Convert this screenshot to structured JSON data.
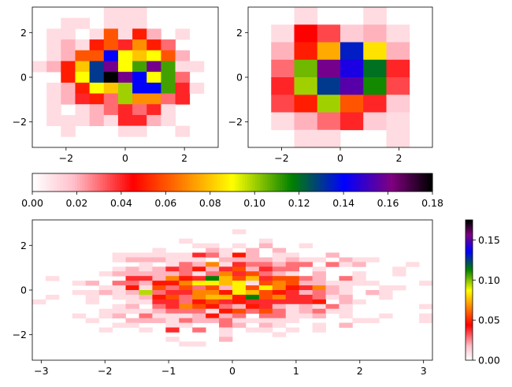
{
  "chart_data": [
    {
      "type": "heatmap",
      "panel": "top-left",
      "xlim": [
        -3.14,
        3.14
      ],
      "ylim": [
        -3.14,
        3.14
      ],
      "xticks": [
        -2,
        0,
        2
      ],
      "yticks": [
        -2,
        0,
        2
      ],
      "xtick_labels": [
        "−2",
        "0",
        "2"
      ],
      "ytick_labels": [
        "−2",
        "0",
        "2"
      ],
      "bins": 13,
      "values_rows_top_to_bottom": [
        [
          0,
          0,
          0,
          0,
          0,
          0.01,
          0.01,
          0.01,
          0,
          0,
          0,
          0,
          0
        ],
        [
          0,
          0,
          0.01,
          0.01,
          0,
          0.01,
          0.01,
          0.01,
          0,
          0,
          0,
          0,
          0
        ],
        [
          0,
          0.01,
          0.01,
          0,
          0.01,
          0.06,
          0.01,
          0.05,
          0.02,
          0,
          0.01,
          0,
          0
        ],
        [
          0,
          0.01,
          0.02,
          0.01,
          0.05,
          0.06,
          0.04,
          0.07,
          0.05,
          0.03,
          0,
          0,
          0
        ],
        [
          0,
          0.01,
          0.02,
          0.06,
          0.06,
          0.14,
          0.09,
          0.08,
          0.09,
          0.06,
          0.02,
          0,
          0
        ],
        [
          0.01,
          0.02,
          0.05,
          0.08,
          0.13,
          0.16,
          0.09,
          0.11,
          0.16,
          0.11,
          0.01,
          0.01,
          0
        ],
        [
          0,
          0,
          0.05,
          0.09,
          0.13,
          0.18,
          0.16,
          0.14,
          0.09,
          0.11,
          0.03,
          0,
          0
        ],
        [
          0,
          0.01,
          0.02,
          0.05,
          0.09,
          0.08,
          0.1,
          0.14,
          0.14,
          0.11,
          0.04,
          0.01,
          0
        ],
        [
          0,
          0.01,
          0.02,
          0.04,
          0.05,
          0.03,
          0.1,
          0.07,
          0.07,
          0.03,
          0.04,
          0,
          0
        ],
        [
          0,
          0.01,
          0,
          0.01,
          0.02,
          0.03,
          0.04,
          0.03,
          0.04,
          0.01,
          0,
          0,
          0
        ],
        [
          0,
          0.01,
          0.01,
          0.01,
          0.02,
          0.01,
          0.04,
          0.04,
          0.02,
          0.01,
          0,
          0,
          0
        ],
        [
          0,
          0,
          0.01,
          0,
          0,
          0,
          0.01,
          0.01,
          0,
          0,
          0.01,
          0,
          0
        ],
        [
          0,
          0,
          0,
          0,
          0,
          0,
          0,
          0,
          0,
          0,
          0,
          0,
          0
        ]
      ]
    },
    {
      "type": "heatmap",
      "panel": "top-right",
      "xlim": [
        -3.14,
        3.14
      ],
      "ylim": [
        -3.14,
        3.14
      ],
      "xticks": [
        -2,
        0,
        2
      ],
      "yticks": [
        -2,
        0,
        2
      ],
      "xtick_labels": [
        "−2",
        "0",
        "2"
      ],
      "ytick_labels": [
        "−2",
        "0",
        "2"
      ],
      "bins": 8,
      "values_rows_top_to_bottom": [
        [
          0,
          0,
          0.01,
          0,
          0,
          0.01,
          0,
          0
        ],
        [
          0,
          0.01,
          0.045,
          0.035,
          0.015,
          0.02,
          0.01,
          0
        ],
        [
          0,
          0.02,
          0.05,
          0.075,
          0.135,
          0.085,
          0.02,
          0
        ],
        [
          0,
          0.03,
          0.105,
          0.16,
          0.145,
          0.12,
          0.04,
          0
        ],
        [
          0,
          0.04,
          0.1,
          0.13,
          0.155,
          0.115,
          0.035,
          0
        ],
        [
          0,
          0.035,
          0.05,
          0.1,
          0.06,
          0.04,
          0.015,
          0
        ],
        [
          0,
          0.01,
          0.02,
          0.03,
          0.04,
          0.015,
          0.01,
          0
        ],
        [
          0,
          0,
          0.01,
          0.01,
          0,
          0,
          0.01,
          0
        ]
      ]
    },
    {
      "type": "heatmap",
      "panel": "bottom",
      "xlim": [
        -3.14,
        3.14
      ],
      "ylim": [
        -3.14,
        3.14
      ],
      "xticks": [
        -3,
        -2,
        -1,
        0,
        1,
        2,
        3
      ],
      "yticks": [
        -2,
        0,
        2
      ],
      "xtick_labels": [
        "−3",
        "−2",
        "−1",
        "0",
        "1",
        "2",
        "3"
      ],
      "ytick_labels": [
        "−2",
        "0",
        "2"
      ],
      "bins": 30,
      "seed": 7
    }
  ],
  "colorbars": {
    "horizontal": {
      "range": [
        0,
        0.18
      ],
      "ticks": [
        "0.00",
        "0.02",
        "0.04",
        "0.06",
        "0.08",
        "0.10",
        "0.12",
        "0.14",
        "0.16",
        "0.18"
      ]
    },
    "vertical": {
      "range": [
        0,
        0.175
      ],
      "ticks": [
        "0.00",
        "0.05",
        "0.10",
        "0.15"
      ]
    }
  },
  "colormap": "gnuplot2-like",
  "colormap_stops": [
    "#ffffff",
    "#ffc0cb",
    "#ff0000",
    "#ffff00",
    "#008000",
    "#0000ff",
    "#800080",
    "#000000"
  ]
}
